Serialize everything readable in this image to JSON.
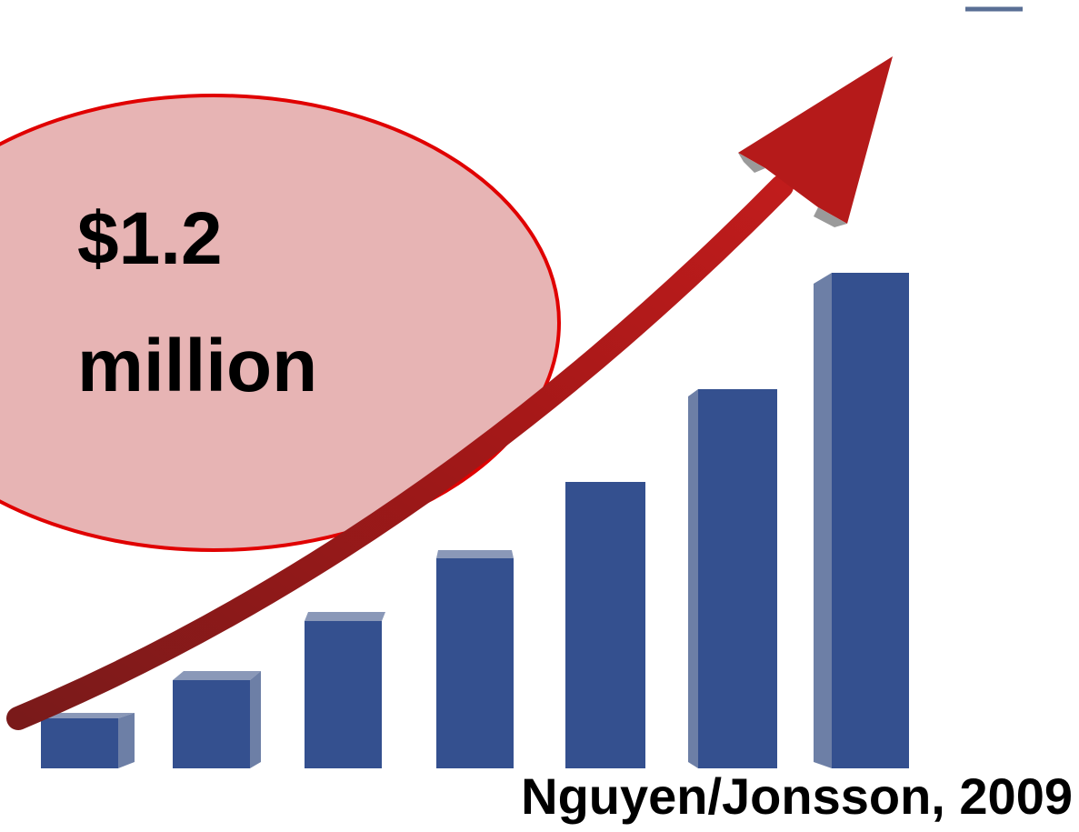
{
  "callout": {
    "lines": [
      "$1.2",
      "million"
    ]
  },
  "citation": "Nguyen/Jonsson, 2009"
}
